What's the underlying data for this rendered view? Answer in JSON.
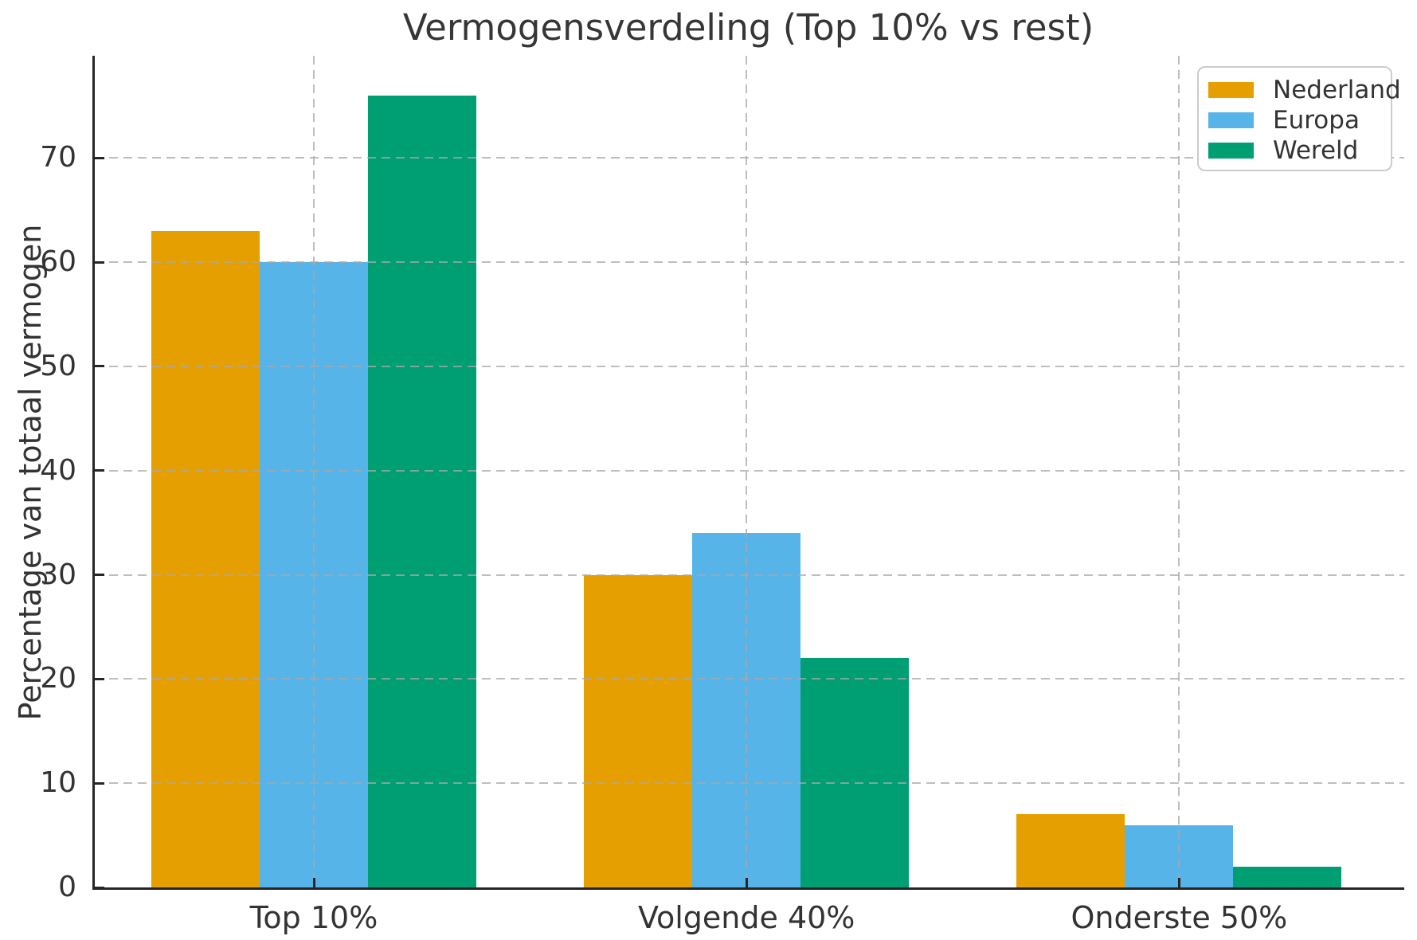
{
  "chart_data": {
    "type": "bar",
    "title": "Vermogensverdeling (Top 10% vs rest)",
    "xlabel": "",
    "ylabel": "Percentage van totaal vermogen",
    "categories": [
      "Top 10%",
      "Volgende 40%",
      "Onderste 50%"
    ],
    "series": [
      {
        "name": "Nederland",
        "color": "#E69F00",
        "values": [
          63,
          30,
          7
        ]
      },
      {
        "name": "Europa",
        "color": "#56B4E9",
        "values": [
          60,
          34,
          6
        ]
      },
      {
        "name": "Wereld",
        "color": "#009E73",
        "values": [
          76,
          22,
          2
        ]
      }
    ],
    "yticks": [
      0,
      10,
      20,
      30,
      40,
      50,
      60,
      70
    ],
    "ylim": [
      0,
      79.8
    ],
    "grid": "dashed",
    "grid_color": "#b0b0b0",
    "spine_color": "#262626",
    "legend_position": "upper right"
  }
}
